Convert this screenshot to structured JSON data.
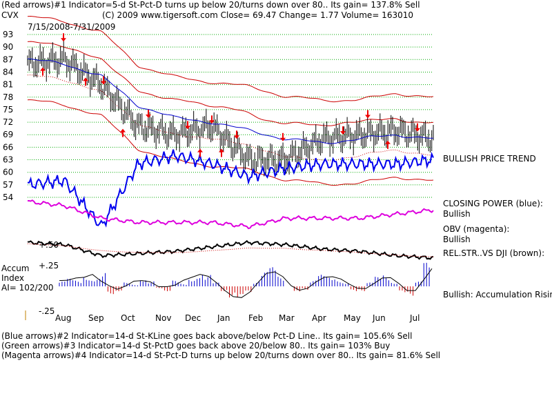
{
  "header": {
    "line1": "(Red arrows)#1 Indicator=5-d St-Pct-D turns up below 20/turns down over 80.. Its gain= 137.8% Sell",
    "ticker": "CVX",
    "line2": "(C) 2009 www.tigersoft.com     Close=  69.47   Change= 1.77  Volume= 163010",
    "date_range": "7/15/2008-7/31/2009"
  },
  "right_labels": {
    "trend": "BULLISH PRICE TREND",
    "cp_title": "CLOSING POWER (blue):",
    "cp_value": "Bullish",
    "obv_title": "OBV (magenta):",
    "obv_value": "Bullish",
    "rel_str": "REL.STR..VS DJI (brown):",
    "accum": "Bullish: Accumulation Rising"
  },
  "accum_labels": {
    "title_line1": "Accum",
    "title_line2": "Index",
    "ai": "AI= 102/200",
    "tick_top": "+.50",
    "tick_mid": "+.25",
    "tick_bottom": "-.25"
  },
  "footer": {
    "line1": "(Blue arrows)#2 Indicator=14-d St-KLine goes back above/below Pct-D Line.. Its gain= 105.6% Sell",
    "line2": "(Green arrows)#3 Indicator=14-d St-PctD goes back above 20/below 80.. Its gain= 103% Buy",
    "line3": "(Magenta arrows)#4 Indicator=14-d St-Pct-D turns up below 20/turns down over 80.. Its gain= 81.6% Sell"
  },
  "colors": {
    "price_bars": "#000000",
    "bands": "#cc0000",
    "moving_average": "#0000cc",
    "closing_power": "#0000ee",
    "obv": "#dd00dd",
    "rel_strength": "#000000",
    "accum_positive": "#0000cc",
    "accum_negative": "#cc0000",
    "arrows": "#ee0000",
    "gridlines": "#00aa00"
  },
  "chart_data": {
    "type": "line",
    "title": "CVX",
    "x": [
      "Aug",
      "Sep",
      "Oct",
      "Nov",
      "Dec",
      "Jan",
      "Feb",
      "Mar",
      "Apr",
      "May",
      "Jun",
      "Jul"
    ],
    "y_ticks": [
      93,
      90,
      87,
      84,
      81,
      78,
      75,
      72,
      69,
      66,
      63,
      60,
      57,
      54
    ],
    "ylim": [
      54,
      93
    ],
    "grid": true,
    "series": [
      {
        "name": "price",
        "values": [
          86,
          87,
          81,
          71,
          69,
          71,
          63,
          63,
          68,
          69,
          70,
          68
        ]
      },
      {
        "name": "moving average",
        "values": [
          87,
          86,
          83,
          76,
          73,
          72,
          70,
          68,
          67,
          68,
          69,
          68
        ]
      },
      {
        "name": "CLOSING POWER (blue)",
        "values": [
          57,
          58,
          47,
          62,
          64,
          62,
          59,
          61,
          62,
          62,
          62,
          63
        ]
      },
      {
        "name": "OBV (magenta)",
        "values": [
          53,
          52,
          49,
          48,
          48,
          48,
          47,
          49,
          49,
          49,
          50,
          51
        ]
      }
    ],
    "accum_index": {
      "label": "Accum Index",
      "ai": "AI= 102/200",
      "ylim": [
        -0.25,
        0.5
      ],
      "values": [
        0.05,
        0.08,
        0.06,
        0.12,
        0.1,
        0.15,
        -0.08,
        -0.05,
        0.04,
        0.02,
        0.1,
        0.06,
        -0.02,
        -0.05,
        0.06,
        0.03,
        0.1,
        0.15,
        0.12,
        0.04,
        -0.05,
        -0.12,
        -0.15,
        -0.08,
        0.05,
        0.15,
        0.2,
        0.1,
        0.0,
        -0.08,
        -0.04,
        0.06,
        0.12,
        0.1,
        0.08,
        0.05,
        -0.06,
        -0.05,
        0.04,
        0.1,
        0.12,
        0.05,
        -0.08,
        -0.1,
        0.05,
        0.25
      ]
    }
  }
}
